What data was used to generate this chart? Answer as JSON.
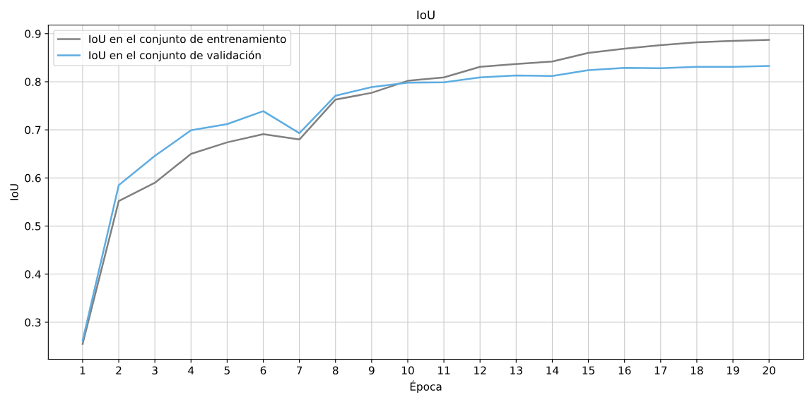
{
  "chart_data": {
    "type": "line",
    "title": "IoU",
    "xlabel": "Época",
    "ylabel": "IoU",
    "x": [
      1,
      2,
      3,
      4,
      5,
      6,
      7,
      8,
      9,
      10,
      11,
      12,
      13,
      14,
      15,
      16,
      17,
      18,
      19,
      20
    ],
    "series": [
      {
        "name": "IoU en el conjunto de entrenamiento",
        "color": "#808080",
        "values": [
          0.255,
          0.552,
          0.59,
          0.65,
          0.674,
          0.691,
          0.68,
          0.763,
          0.777,
          0.802,
          0.809,
          0.831,
          0.837,
          0.842,
          0.86,
          0.869,
          0.876,
          0.882,
          0.885,
          0.887
        ]
      },
      {
        "name": "IoU en el conjunto de validación",
        "color": "#5dade2",
        "values": [
          0.262,
          0.585,
          0.646,
          0.699,
          0.712,
          0.739,
          0.693,
          0.771,
          0.789,
          0.798,
          0.799,
          0.809,
          0.813,
          0.812,
          0.824,
          0.829,
          0.828,
          0.831,
          0.831,
          0.833
        ]
      }
    ],
    "xlim": [
      0.05,
      20.95
    ],
    "xticks": [
      1,
      2,
      3,
      4,
      5,
      6,
      7,
      8,
      9,
      10,
      11,
      12,
      13,
      14,
      15,
      16,
      17,
      18,
      19,
      20
    ],
    "ylim": [
      0.223,
      0.918
    ],
    "yticks": [
      0.3,
      0.4,
      0.5,
      0.6,
      0.7,
      0.8,
      0.9
    ],
    "grid": true,
    "legend": "top left",
    "marker": "none",
    "line_style": "solid"
  }
}
